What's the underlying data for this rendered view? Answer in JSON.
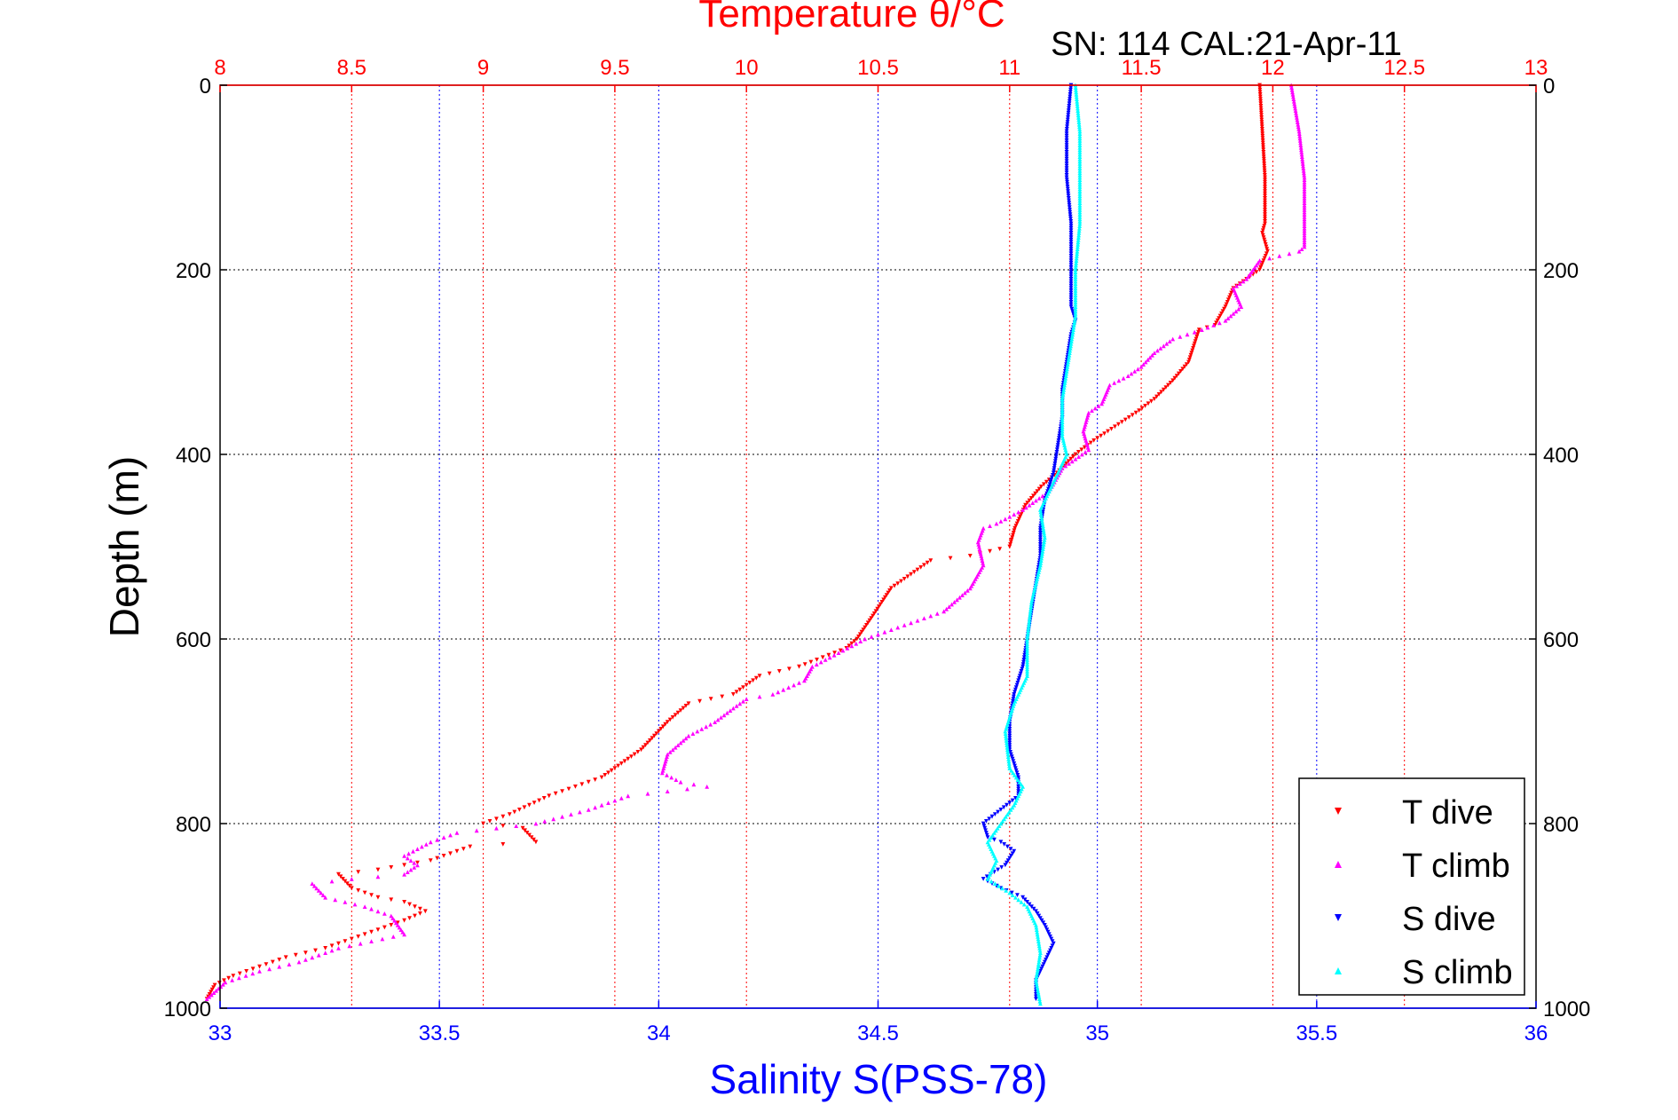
{
  "chart_data": {
    "type": "scatter",
    "title": "Temperature θ/°C",
    "subtitle": "SN: 114  CAL:21-Apr-11",
    "xlabel_bottom": "Salinity S(PSS-78)",
    "xlabel_top": "Temperature θ/°C",
    "ylabel": "Depth (m)",
    "salinity_axis": {
      "range": [
        33,
        36
      ],
      "ticks": [
        33,
        33.5,
        34,
        34.5,
        35,
        35.5,
        36
      ],
      "tick_labels": [
        "33",
        "33.5",
        "34",
        "34.5",
        "35",
        "35.5",
        "36"
      ]
    },
    "temperature_axis": {
      "range": [
        8,
        13
      ],
      "ticks": [
        8,
        8.5,
        9,
        9.5,
        10,
        10.5,
        11,
        11.5,
        12,
        12.5,
        13
      ],
      "tick_labels": [
        "8",
        "8.5",
        "9",
        "9.5",
        "10",
        "10.5",
        "11",
        "11.5",
        "12",
        "12.5",
        "13"
      ]
    },
    "depth_axis": {
      "range": [
        0,
        1000
      ],
      "reversed": true,
      "ticks": [
        0,
        200,
        400,
        600,
        800,
        1000
      ],
      "tick_labels": [
        "0",
        "200",
        "400",
        "600",
        "800",
        "1000"
      ]
    },
    "grid": true,
    "legend_position": "bottom-right",
    "series": [
      {
        "name": "T dive",
        "axis": "temperature",
        "color": "#ff0000",
        "marker": "triangle-down",
        "points": [
          [
            11.95,
            0
          ],
          [
            11.96,
            50
          ],
          [
            11.97,
            100
          ],
          [
            11.97,
            150
          ],
          [
            11.96,
            160
          ],
          [
            11.98,
            180
          ],
          [
            11.95,
            200
          ],
          [
            11.85,
            220
          ],
          [
            11.82,
            240
          ],
          [
            11.78,
            260
          ],
          [
            11.72,
            265
          ],
          [
            11.68,
            300
          ],
          [
            11.62,
            320
          ],
          [
            11.55,
            340
          ],
          [
            11.48,
            355
          ],
          [
            11.4,
            370
          ],
          [
            11.32,
            385
          ],
          [
            11.25,
            400
          ],
          [
            11.18,
            420
          ],
          [
            11.12,
            435
          ],
          [
            11.06,
            455
          ],
          [
            11.02,
            480
          ],
          [
            11.0,
            500
          ],
          [
            10.85,
            510
          ],
          [
            10.7,
            515
          ],
          [
            10.55,
            545
          ],
          [
            10.48,
            575
          ],
          [
            10.42,
            600
          ],
          [
            10.38,
            610
          ],
          [
            10.2,
            630
          ],
          [
            10.05,
            640
          ],
          [
            9.95,
            660
          ],
          [
            9.78,
            670
          ],
          [
            9.7,
            690
          ],
          [
            9.6,
            720
          ],
          [
            9.45,
            750
          ],
          [
            9.3,
            765
          ],
          [
            9.25,
            770
          ],
          [
            9.1,
            790
          ],
          [
            9.0,
            800
          ],
          [
            9.15,
            805
          ],
          [
            9.2,
            820
          ],
          [
            8.95,
            825
          ],
          [
            8.8,
            840
          ],
          [
            8.6,
            850
          ],
          [
            8.45,
            855
          ],
          [
            8.5,
            870
          ],
          [
            8.6,
            880
          ],
          [
            8.7,
            885
          ],
          [
            8.78,
            895
          ],
          [
            8.7,
            905
          ],
          [
            8.55,
            920
          ],
          [
            8.4,
            935
          ],
          [
            8.25,
            945
          ],
          [
            8.15,
            955
          ],
          [
            8.05,
            965
          ],
          [
            7.98,
            975
          ],
          [
            7.95,
            990
          ]
        ]
      },
      {
        "name": "T climb",
        "axis": "temperature",
        "color": "#ff00ff",
        "marker": "triangle-up",
        "points": [
          [
            12.07,
            0
          ],
          [
            12.1,
            50
          ],
          [
            12.12,
            100
          ],
          [
            12.12,
            150
          ],
          [
            12.12,
            175
          ],
          [
            12.1,
            180
          ],
          [
            11.95,
            190
          ],
          [
            11.9,
            210
          ],
          [
            11.85,
            220
          ],
          [
            11.88,
            240
          ],
          [
            11.82,
            255
          ],
          [
            11.73,
            265
          ],
          [
            11.62,
            275
          ],
          [
            11.55,
            290
          ],
          [
            11.5,
            305
          ],
          [
            11.45,
            315
          ],
          [
            11.38,
            325
          ],
          [
            11.35,
            345
          ],
          [
            11.3,
            355
          ],
          [
            11.28,
            375
          ],
          [
            11.3,
            395
          ],
          [
            11.25,
            405
          ],
          [
            11.2,
            415
          ],
          [
            11.18,
            425
          ],
          [
            11.15,
            440
          ],
          [
            11.05,
            460
          ],
          [
            10.95,
            475
          ],
          [
            10.9,
            480
          ],
          [
            10.88,
            495
          ],
          [
            10.9,
            520
          ],
          [
            10.85,
            545
          ],
          [
            10.75,
            570
          ],
          [
            10.6,
            585
          ],
          [
            10.45,
            600
          ],
          [
            10.35,
            615
          ],
          [
            10.25,
            630
          ],
          [
            10.22,
            645
          ],
          [
            10.1,
            660
          ],
          [
            10.0,
            665
          ],
          [
            9.95,
            675
          ],
          [
            9.88,
            690
          ],
          [
            9.78,
            705
          ],
          [
            9.7,
            725
          ],
          [
            9.68,
            745
          ],
          [
            9.75,
            755
          ],
          [
            9.85,
            760
          ],
          [
            9.55,
            770
          ],
          [
            9.4,
            785
          ],
          [
            9.2,
            800
          ],
          [
            8.9,
            810
          ],
          [
            8.8,
            820
          ],
          [
            8.7,
            835
          ],
          [
            8.75,
            845
          ],
          [
            8.7,
            855
          ],
          [
            8.5,
            860
          ],
          [
            8.35,
            865
          ],
          [
            8.4,
            880
          ],
          [
            8.55,
            890
          ],
          [
            8.65,
            900
          ],
          [
            8.7,
            920
          ],
          [
            8.45,
            935
          ],
          [
            8.3,
            950
          ],
          [
            8.15,
            960
          ],
          [
            8.02,
            972
          ],
          [
            7.95,
            990
          ]
        ]
      },
      {
        "name": "S dive",
        "axis": "salinity",
        "color": "#0000ff",
        "marker": "triangle-down",
        "points": [
          [
            34.94,
            0
          ],
          [
            34.93,
            50
          ],
          [
            34.93,
            100
          ],
          [
            34.94,
            150
          ],
          [
            34.94,
            200
          ],
          [
            34.94,
            240
          ],
          [
            34.95,
            255
          ],
          [
            34.94,
            270
          ],
          [
            34.93,
            300
          ],
          [
            34.92,
            330
          ],
          [
            34.92,
            360
          ],
          [
            34.91,
            390
          ],
          [
            34.9,
            420
          ],
          [
            34.88,
            450
          ],
          [
            34.87,
            480
          ],
          [
            34.87,
            510
          ],
          [
            34.86,
            540
          ],
          [
            34.85,
            570
          ],
          [
            34.84,
            600
          ],
          [
            34.83,
            630
          ],
          [
            34.81,
            660
          ],
          [
            34.8,
            690
          ],
          [
            34.8,
            720
          ],
          [
            34.82,
            750
          ],
          [
            34.82,
            770
          ],
          [
            34.78,
            785
          ],
          [
            34.74,
            800
          ],
          [
            34.75,
            815
          ],
          [
            34.78,
            820
          ],
          [
            34.81,
            830
          ],
          [
            34.79,
            845
          ],
          [
            34.74,
            860
          ],
          [
            34.78,
            870
          ],
          [
            34.83,
            880
          ],
          [
            34.86,
            895
          ],
          [
            34.88,
            910
          ],
          [
            34.9,
            930
          ],
          [
            34.88,
            950
          ],
          [
            34.86,
            970
          ],
          [
            34.86,
            990
          ]
        ]
      },
      {
        "name": "S climb",
        "axis": "salinity",
        "color": "#00ffff",
        "marker": "triangle-up",
        "points": [
          [
            34.95,
            0
          ],
          [
            34.96,
            50
          ],
          [
            34.96,
            100
          ],
          [
            34.96,
            150
          ],
          [
            34.95,
            200
          ],
          [
            34.95,
            250
          ],
          [
            34.94,
            280
          ],
          [
            34.93,
            310
          ],
          [
            34.92,
            340
          ],
          [
            34.92,
            380
          ],
          [
            34.93,
            400
          ],
          [
            34.9,
            430
          ],
          [
            34.87,
            460
          ],
          [
            34.88,
            490
          ],
          [
            34.87,
            520
          ],
          [
            34.85,
            560
          ],
          [
            34.84,
            600
          ],
          [
            34.84,
            640
          ],
          [
            34.81,
            670
          ],
          [
            34.79,
            700
          ],
          [
            34.8,
            740
          ],
          [
            34.83,
            760
          ],
          [
            34.81,
            780
          ],
          [
            34.78,
            800
          ],
          [
            34.75,
            820
          ],
          [
            34.77,
            840
          ],
          [
            34.75,
            860
          ],
          [
            34.8,
            875
          ],
          [
            34.84,
            890
          ],
          [
            34.86,
            910
          ],
          [
            34.87,
            940
          ],
          [
            34.86,
            970
          ],
          [
            34.87,
            995
          ]
        ]
      }
    ]
  }
}
